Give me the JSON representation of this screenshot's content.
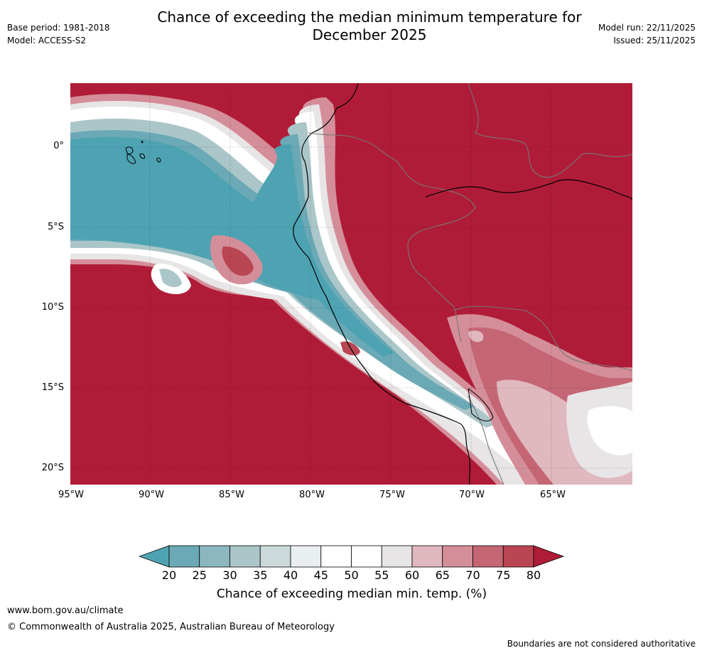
{
  "header": {
    "title_line1": "Chance of exceeding the median minimum temperature for",
    "title_line2": "December 2025",
    "base_period": "Base period: 1981-2018",
    "model": "Model: ACCESS-S2",
    "model_run": "Model run: 22/11/2025",
    "issued": "Issued: 25/11/2025"
  },
  "map": {
    "lat_labels": [
      "0°",
      "5°S",
      "10°S",
      "15°S",
      "20°S"
    ],
    "lon_labels": [
      "95°W",
      "90°W",
      "85°W",
      "80°W",
      "75°W",
      "70°W",
      "65°W"
    ]
  },
  "colorbar": {
    "ticks": [
      "20",
      "25",
      "30",
      "35",
      "40",
      "45",
      "50",
      "55",
      "60",
      "65",
      "70",
      "75",
      "80"
    ],
    "colors": [
      "#4ea3b3",
      "#6aa9b5",
      "#8cb7c0",
      "#abc6c9",
      "#cbd9da",
      "#e9eef0",
      "#ffffff",
      "#ffffff",
      "#e8e5e6",
      "#e0b8bf",
      "#d48e99",
      "#c56674",
      "#b94652",
      "#b01c37"
    ],
    "label": "Chance of exceeding median min. temp. (%)"
  },
  "footer": {
    "url": "www.bom.gov.au/climate",
    "copyright": "© Commonwealth of Australia 2025, Australian Bureau of Meteorology",
    "disclaimer": "Boundaries are not considered authoritative"
  }
}
